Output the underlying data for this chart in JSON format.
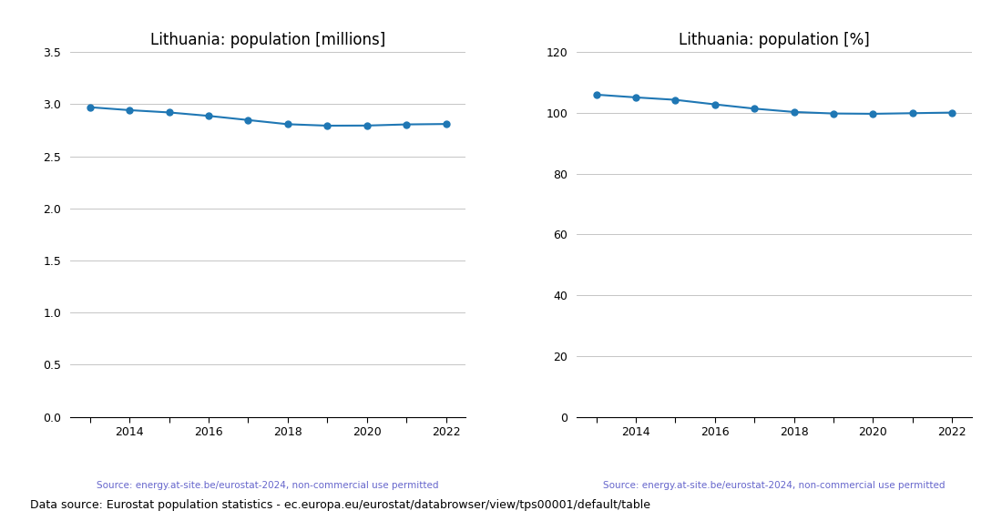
{
  "years": [
    2013,
    2014,
    2015,
    2016,
    2017,
    2018,
    2019,
    2020,
    2021,
    2022
  ],
  "population_millions": [
    2.971,
    2.943,
    2.921,
    2.888,
    2.848,
    2.808,
    2.794,
    2.795,
    2.806,
    2.81
  ],
  "population_percent": [
    106.0,
    105.1,
    104.3,
    102.8,
    101.4,
    100.3,
    99.8,
    99.7,
    99.9,
    100.1
  ],
  "title1": "Lithuania: population [millions]",
  "title2": "Lithuania: population [%]",
  "source_text": "Source: energy.at-site.be/eurostat-2024, non-commercial use permitted",
  "footer_text": "Data source: Eurostat population statistics - ec.europa.eu/eurostat/databrowser/view/tps00001/default/table",
  "line_color": "#1f77b4",
  "source_color": "#6666cc",
  "footer_color": "#000000",
  "ylim1": [
    0.0,
    3.5
  ],
  "yticks1": [
    0.0,
    0.5,
    1.0,
    1.5,
    2.0,
    2.5,
    3.0,
    3.5
  ],
  "ylim2": [
    0,
    120
  ],
  "yticks2": [
    0,
    20,
    40,
    60,
    80,
    100,
    120
  ],
  "xlim": [
    2012.5,
    2022.5
  ],
  "xticks": [
    2013,
    2014,
    2015,
    2016,
    2017,
    2018,
    2019,
    2020,
    2021,
    2022
  ],
  "xticklabels": [
    "",
    "2014",
    "",
    "2016",
    "",
    "2018",
    "",
    "2020",
    "",
    "2022"
  ]
}
